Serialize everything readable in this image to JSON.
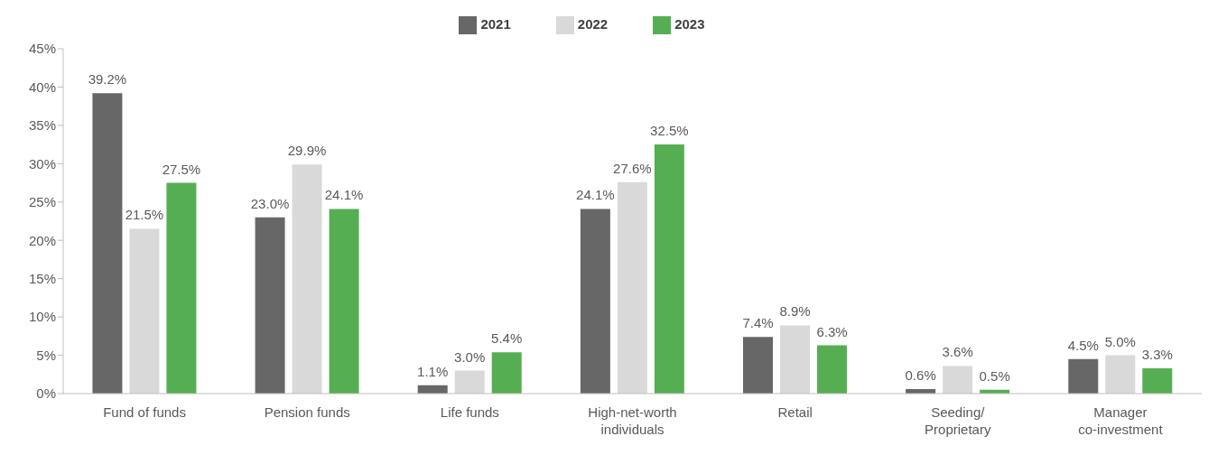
{
  "chart_data": {
    "type": "bar",
    "categories": [
      "Fund of funds",
      "Pension funds",
      "Life funds",
      "High-net-worth\nindividuals",
      "Retail",
      "Seeding/\nProprietary",
      "Manager\nco-investment"
    ],
    "series": [
      {
        "name": "2021",
        "color": "#676767",
        "values": [
          39.2,
          23.0,
          1.1,
          24.1,
          7.4,
          0.6,
          4.5
        ],
        "value_labels": [
          "39.2%",
          "23.0%",
          "1.1%",
          "24.1%",
          "7.4%",
          "0.6%",
          "4.5%"
        ]
      },
      {
        "name": "2022",
        "color": "#d9d9d9",
        "values": [
          21.5,
          29.9,
          3.0,
          27.6,
          8.9,
          3.6,
          5.0
        ],
        "value_labels": [
          "21.5%",
          "29.9%",
          "3.0%",
          "27.6%",
          "8.9%",
          "3.6%",
          "5.0%"
        ]
      },
      {
        "name": "2023",
        "color": "#56ae52",
        "values": [
          27.5,
          24.1,
          5.4,
          32.5,
          6.3,
          0.5,
          3.3
        ],
        "value_labels": [
          "27.5%",
          "24.1%",
          "5.4%",
          "32.5%",
          "6.3%",
          "0.5%",
          "3.3%"
        ]
      }
    ],
    "ylim": [
      0,
      45
    ],
    "yticks": [
      {
        "value": 0,
        "label": "0%"
      },
      {
        "value": 5,
        "label": "5%"
      },
      {
        "value": 10,
        "label": "10%"
      },
      {
        "value": 15,
        "label": "15%"
      },
      {
        "value": 20,
        "label": "20%"
      },
      {
        "value": 25,
        "label": "25%"
      },
      {
        "value": 30,
        "label": "30%"
      },
      {
        "value": 35,
        "label": "35%"
      },
      {
        "value": 40,
        "label": "40%"
      },
      {
        "value": 45,
        "label": "45%"
      }
    ],
    "legend": "top",
    "grid": false
  }
}
